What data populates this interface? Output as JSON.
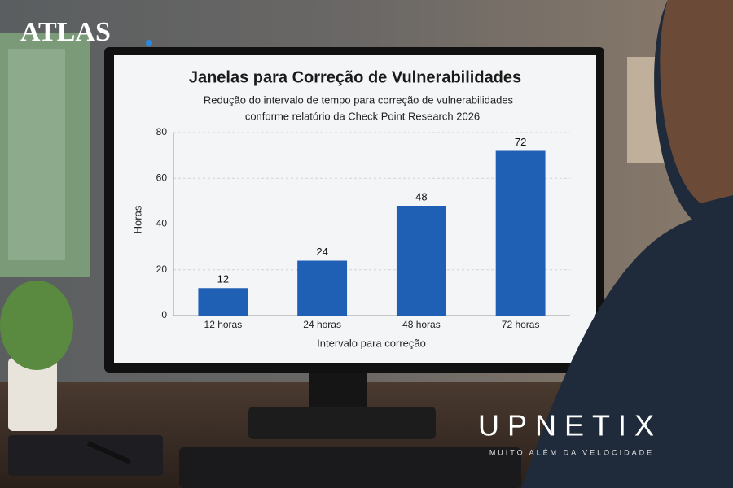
{
  "brand": "ATLAS",
  "chart_data": {
    "type": "bar",
    "title": "Janelas para Correção de Vulnerabilidades",
    "subtitle": [
      "Redução do intervalo de tempo para correção de vulnerabilidades",
      "conforme relatório da Check Point Research 2026"
    ],
    "categories": [
      "12 horas",
      "24 horas",
      "48 horas",
      "72 horas"
    ],
    "values": [
      12,
      24,
      48,
      72
    ],
    "color": "#1f5fb4",
    "ylim": [
      0,
      80
    ],
    "yticks": [
      0,
      20,
      40,
      60,
      80
    ],
    "grid": true,
    "xlabel": "Intervalo para correção",
    "ylabel": "Horas"
  },
  "watermark": {
    "name": "UPNETIX",
    "tagline": "MUITO ALÉM DA VELOCIDADE"
  }
}
